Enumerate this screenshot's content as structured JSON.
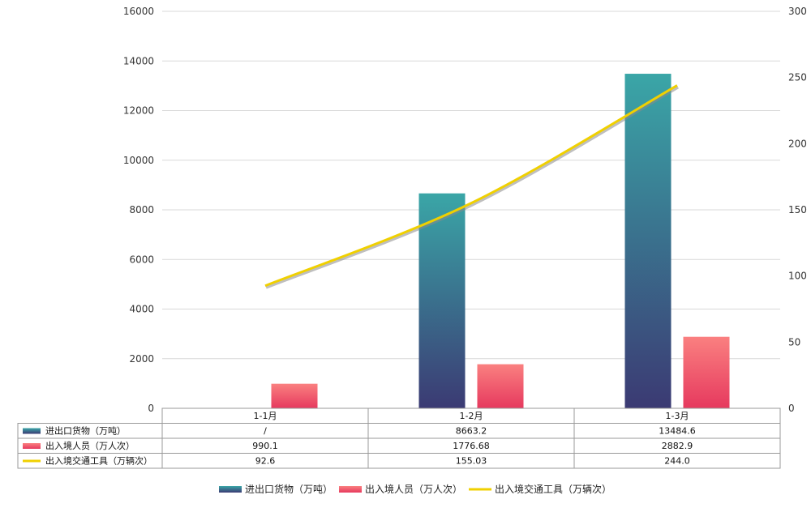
{
  "chart_data": {
    "type": "bar",
    "categories": [
      "1-1月",
      "1-2月",
      "1-3月"
    ],
    "series": [
      {
        "name": "进出口货物（万吨）",
        "kind": "bar",
        "axis": "left",
        "values": [
          null,
          8663.2,
          13484.6
        ],
        "labels": [
          "/",
          "8663.2",
          "13484.6"
        ],
        "color_top": "#3aa6a7",
        "color_bottom": "#3b3a73"
      },
      {
        "name": "出入境人员（万人次）",
        "kind": "bar",
        "axis": "left",
        "values": [
          990.1,
          1776.68,
          2882.9
        ],
        "labels": [
          "990.1",
          "1776.68",
          "2882.9"
        ],
        "color_top": "#fa8080",
        "color_bottom": "#e6395e"
      },
      {
        "name": "出入境交通工具（万辆次）",
        "kind": "line",
        "axis": "right",
        "values": [
          92.6,
          155.03,
          244.0
        ],
        "labels": [
          "92.6",
          "155.03",
          "244.0"
        ],
        "color": "#f0d000"
      }
    ],
    "left_axis": {
      "min": 0,
      "max": 16000,
      "ticks": [
        "0",
        "2000",
        "4000",
        "6000",
        "8000",
        "10000",
        "12000",
        "14000",
        "16000"
      ]
    },
    "right_axis": {
      "min": 0,
      "max": 300,
      "ticks": [
        "0",
        "50",
        "100",
        "150",
        "200",
        "250",
        "300"
      ]
    },
    "grid": true,
    "legend_position": "bottom",
    "has_data_table": true
  }
}
